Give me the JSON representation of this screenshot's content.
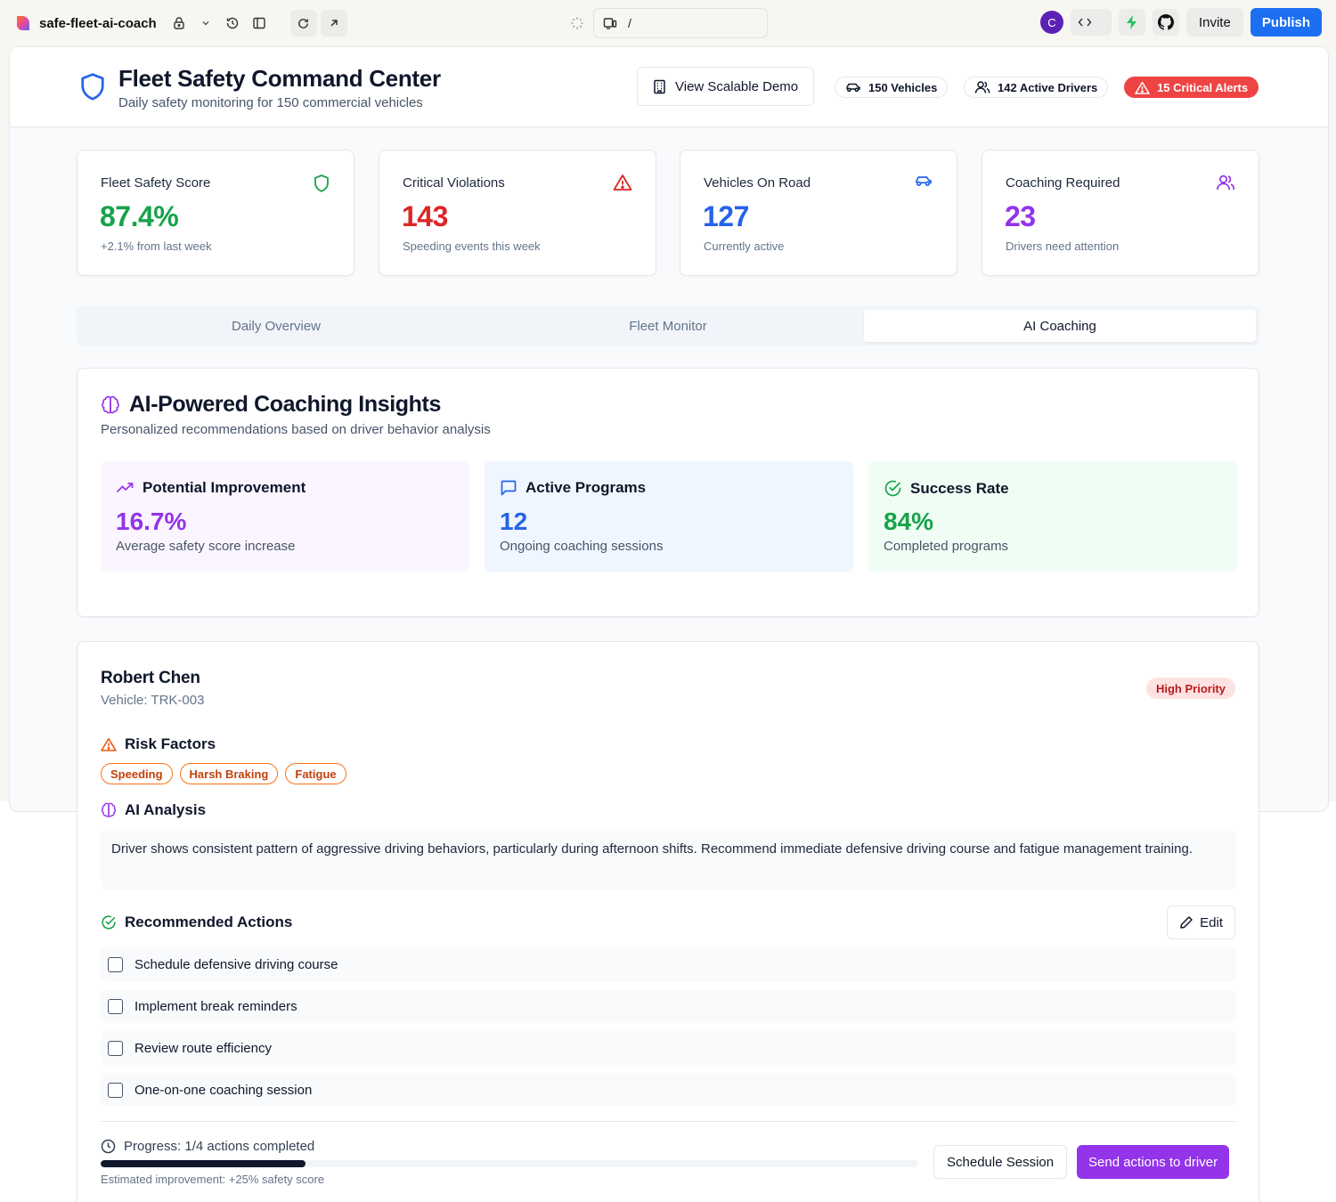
{
  "topbar": {
    "project_name": "safe-fleet-ai-coach",
    "url_path": "/",
    "avatar_letter": "C",
    "invite_label": "Invite",
    "publish_label": "Publish"
  },
  "header": {
    "title": "Fleet Safety Command Center",
    "subtitle": "Daily safety monitoring for 150 commercial vehicles",
    "demo_button": "View Scalable Demo",
    "vehicles_pill": "150 Vehicles",
    "drivers_pill": "142 Active Drivers",
    "alerts_pill": "15 Critical Alerts"
  },
  "stats": [
    {
      "label": "Fleet Safety Score",
      "value": "87.4%",
      "sub": "+2.1% from last week",
      "icon": "shield-icon",
      "color": "#16a34a"
    },
    {
      "label": "Critical Violations",
      "value": "143",
      "sub": "Speeding events this week",
      "icon": "alert-triangle-icon",
      "color": "#dc2626"
    },
    {
      "label": "Vehicles On Road",
      "value": "127",
      "sub": "Currently active",
      "icon": "car-icon",
      "color": "#2563eb"
    },
    {
      "label": "Coaching Required",
      "value": "23",
      "sub": "Drivers need attention",
      "icon": "users-icon",
      "color": "#9333ea"
    }
  ],
  "tabs": [
    {
      "label": "Daily Overview",
      "active": false
    },
    {
      "label": "Fleet Monitor",
      "active": false
    },
    {
      "label": "AI Coaching",
      "active": true
    }
  ],
  "insights": {
    "title": "AI-Powered Coaching Insights",
    "subtitle": "Personalized recommendations based on driver behavior analysis",
    "metrics": [
      {
        "title": "Potential Improvement",
        "value": "16.7%",
        "sub": "Average safety score increase",
        "color": "#9333ea",
        "bg": "#faf5ff"
      },
      {
        "title": "Active Programs",
        "value": "12",
        "sub": "Ongoing coaching sessions",
        "color": "#2563eb",
        "bg": "#eff6ff"
      },
      {
        "title": "Success Rate",
        "value": "84%",
        "sub": "Completed programs",
        "color": "#16a34a",
        "bg": "#f0fdf4"
      }
    ]
  },
  "driver": {
    "name": "Robert Chen",
    "vehicle": "Vehicle: TRK-003",
    "priority": "High Priority",
    "risk_title": "Risk Factors",
    "risk_tags": [
      "Speeding",
      "Harsh Braking",
      "Fatigue"
    ],
    "analysis_title": "AI Analysis",
    "analysis_text": "Driver shows consistent pattern of aggressive driving behaviors, particularly during afternoon shifts. Recommend immediate defensive driving course and fatigue management training.",
    "actions_title": "Recommended Actions",
    "edit_label": "Edit",
    "actions": [
      "Schedule defensive driving course",
      "Implement break reminders",
      "Review route efficiency",
      "One-on-one coaching session"
    ],
    "progress_label": "Progress: 1/4 actions completed",
    "progress_fraction": 0.25,
    "estimated": "Estimated improvement: +25% safety score",
    "schedule_label": "Schedule Session",
    "send_label": "Send actions to driver"
  }
}
